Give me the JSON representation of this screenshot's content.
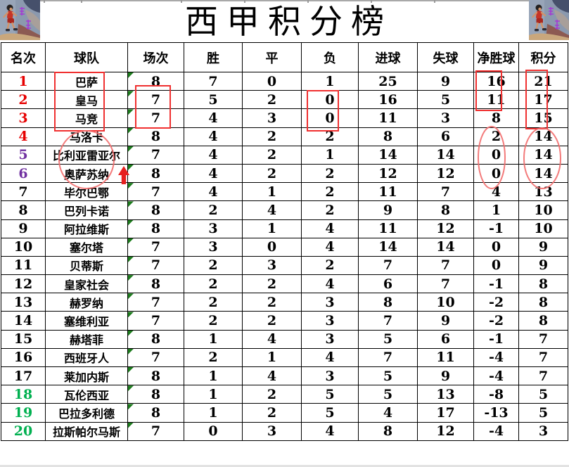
{
  "title": "西甲积分榜",
  "corner_artwork": "slam-dunk-basketball-player-artwork",
  "table": {
    "columns": [
      "名次",
      "球队",
      "场次",
      "胜",
      "平",
      "负",
      "进球",
      "失球",
      "净胜球",
      "积分"
    ],
    "rows": [
      {
        "rank": 1,
        "rank_color": "red",
        "team": "巴萨",
        "played": 8,
        "win": 7,
        "draw": 0,
        "loss": 1,
        "goals_for": 25,
        "goals_against": 9,
        "goal_diff": 16,
        "points": 21
      },
      {
        "rank": 2,
        "rank_color": "red",
        "team": "皇马",
        "played": 7,
        "win": 5,
        "draw": 2,
        "loss": 0,
        "goals_for": 16,
        "goals_against": 5,
        "goal_diff": 11,
        "points": 17
      },
      {
        "rank": 3,
        "rank_color": "red",
        "team": "马竞",
        "played": 7,
        "win": 4,
        "draw": 3,
        "loss": 0,
        "goals_for": 11,
        "goals_against": 3,
        "goal_diff": 8,
        "points": 15
      },
      {
        "rank": 4,
        "rank_color": "red",
        "team": "马洛卡",
        "played": 8,
        "win": 4,
        "draw": 2,
        "loss": 2,
        "goals_for": 8,
        "goals_against": 6,
        "goal_diff": 2,
        "points": 14
      },
      {
        "rank": 5,
        "rank_color": "purple",
        "team": "比利亚雷亚尔",
        "played": 7,
        "win": 4,
        "draw": 2,
        "loss": 1,
        "goals_for": 14,
        "goals_against": 14,
        "goal_diff": 0,
        "points": 14
      },
      {
        "rank": 6,
        "rank_color": "purple",
        "team": "奥萨苏纳",
        "played": 8,
        "win": 4,
        "draw": 2,
        "loss": 2,
        "goals_for": 12,
        "goals_against": 12,
        "goal_diff": 0,
        "points": 14
      },
      {
        "rank": 7,
        "rank_color": "black",
        "team": "毕尔巴鄂",
        "played": 7,
        "win": 4,
        "draw": 1,
        "loss": 2,
        "goals_for": 11,
        "goals_against": 7,
        "goal_diff": 4,
        "points": 13
      },
      {
        "rank": 8,
        "rank_color": "black",
        "team": "巴列卡诺",
        "played": 8,
        "win": 2,
        "draw": 4,
        "loss": 2,
        "goals_for": 9,
        "goals_against": 8,
        "goal_diff": 1,
        "points": 10
      },
      {
        "rank": 9,
        "rank_color": "black",
        "team": "阿拉维斯",
        "played": 8,
        "win": 3,
        "draw": 1,
        "loss": 4,
        "goals_for": 11,
        "goals_against": 12,
        "goal_diff": -1,
        "points": 10
      },
      {
        "rank": 10,
        "rank_color": "black",
        "team": "塞尔塔",
        "played": 7,
        "win": 3,
        "draw": 0,
        "loss": 4,
        "goals_for": 14,
        "goals_against": 14,
        "goal_diff": 0,
        "points": 9
      },
      {
        "rank": 11,
        "rank_color": "black",
        "team": "贝蒂斯",
        "played": 7,
        "win": 2,
        "draw": 3,
        "loss": 2,
        "goals_for": 7,
        "goals_against": 7,
        "goal_diff": 0,
        "points": 9
      },
      {
        "rank": 12,
        "rank_color": "black",
        "team": "皇家社会",
        "played": 8,
        "win": 2,
        "draw": 2,
        "loss": 4,
        "goals_for": 6,
        "goals_against": 7,
        "goal_diff": -1,
        "points": 8
      },
      {
        "rank": 13,
        "rank_color": "black",
        "team": "赫罗纳",
        "played": 7,
        "win": 2,
        "draw": 2,
        "loss": 3,
        "goals_for": 8,
        "goals_against": 10,
        "goal_diff": -2,
        "points": 8
      },
      {
        "rank": 14,
        "rank_color": "black",
        "team": "塞维利亚",
        "played": 7,
        "win": 2,
        "draw": 2,
        "loss": 3,
        "goals_for": 7,
        "goals_against": 9,
        "goal_diff": -2,
        "points": 8
      },
      {
        "rank": 15,
        "rank_color": "black",
        "team": "赫塔菲",
        "played": 8,
        "win": 1,
        "draw": 4,
        "loss": 3,
        "goals_for": 5,
        "goals_against": 6,
        "goal_diff": -1,
        "points": 7
      },
      {
        "rank": 16,
        "rank_color": "black",
        "team": "西班牙人",
        "played": 7,
        "win": 2,
        "draw": 1,
        "loss": 4,
        "goals_for": 7,
        "goals_against": 11,
        "goal_diff": -4,
        "points": 7
      },
      {
        "rank": 17,
        "rank_color": "black",
        "team": "莱加内斯",
        "played": 8,
        "win": 1,
        "draw": 4,
        "loss": 3,
        "goals_for": 5,
        "goals_against": 9,
        "goal_diff": -4,
        "points": 7
      },
      {
        "rank": 18,
        "rank_color": "green",
        "team": "瓦伦西亚",
        "played": 8,
        "win": 1,
        "draw": 2,
        "loss": 5,
        "goals_for": 5,
        "goals_against": 13,
        "goal_diff": -8,
        "points": 5
      },
      {
        "rank": 19,
        "rank_color": "green",
        "team": "巴拉多利德",
        "played": 8,
        "win": 1,
        "draw": 2,
        "loss": 5,
        "goals_for": 4,
        "goals_against": 17,
        "goal_diff": -13,
        "points": 5
      },
      {
        "rank": 20,
        "rank_color": "green",
        "team": "拉斯帕尔马斯",
        "played": 7,
        "win": 0,
        "draw": 3,
        "loss": 4,
        "goals_for": 8,
        "goals_against": 12,
        "goal_diff": -4,
        "points": 3
      }
    ]
  },
  "colors": {
    "rank_red": "#e60000",
    "rank_purple": "#7030a0",
    "rank_green": "#00b050",
    "comment_marker": "#1e7d1e",
    "annotation_box": "#f03030",
    "annotation_ellipse": "#f26d6d",
    "annotation_arrow": "#e62020"
  },
  "annotations": [
    {
      "shape": "box",
      "highlights": "top-3 team names 巴萨/皇马/马竞"
    },
    {
      "shape": "box",
      "highlights": "场次 values 7/7 of ranks 2-3"
    },
    {
      "shape": "box",
      "highlights": "负 values 0/0 of ranks 2-3"
    },
    {
      "shape": "box",
      "highlights": "净胜球 values 16/11 of ranks 1-2"
    },
    {
      "shape": "box",
      "highlights": "积分 values 21/17/15 of ranks 1-3"
    },
    {
      "shape": "ellipse",
      "highlights": "team names of ranks 4-6 马洛卡/比利亚雷亚尔/奥萨苏纳"
    },
    {
      "shape": "ellipse",
      "highlights": "净胜球 values 2/0/0 of ranks 4-6"
    },
    {
      "shape": "ellipse",
      "highlights": "积分 values 14/14/14 of ranks 4-6"
    },
    {
      "shape": "arrow-up",
      "highlights": "rising marker beside 奥萨苏纳"
    }
  ]
}
